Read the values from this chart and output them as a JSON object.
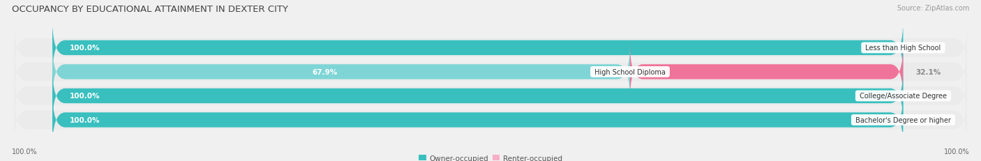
{
  "title": "OCCUPANCY BY EDUCATIONAL ATTAINMENT IN DEXTER CITY",
  "source": "Source: ZipAtlas.com",
  "categories": [
    "Less than High School",
    "High School Diploma",
    "College/Associate Degree",
    "Bachelor's Degree or higher"
  ],
  "owner_values": [
    100.0,
    67.9,
    100.0,
    100.0
  ],
  "renter_values": [
    0.0,
    32.1,
    0.0,
    0.0
  ],
  "owner_color": "#3abfbf",
  "owner_color_light": "#7fd5d5",
  "renter_color": "#f0739a",
  "renter_color_light": "#f7afc5",
  "bar_bg_color": "#e0e0e0",
  "row_bg_color": "#ebebeb",
  "owner_label": "Owner-occupied",
  "renter_label": "Renter-occupied",
  "title_fontsize": 9.5,
  "label_fontsize": 7.5,
  "value_fontsize": 7.5,
  "cat_fontsize": 7.0,
  "source_fontsize": 7.0,
  "background_color": "#f0f0f0",
  "bar_height": 0.62,
  "n_rows": 4
}
